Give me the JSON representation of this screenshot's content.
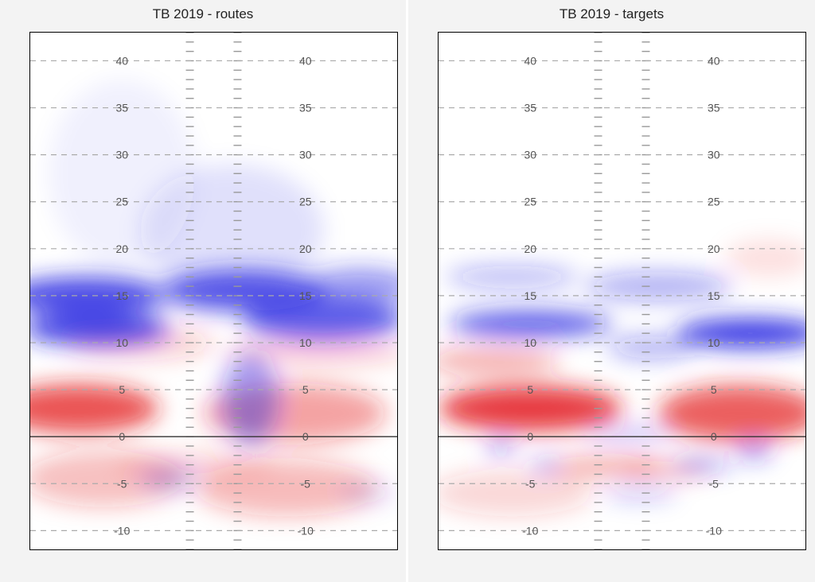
{
  "chart_data": [
    {
      "type": "heatmap",
      "title": "TB 2019 - routes",
      "ylim": [
        -12,
        43
      ],
      "yard_lines": [
        -10,
        -5,
        0,
        5,
        10,
        15,
        20,
        25,
        30,
        35,
        40
      ],
      "yard_labels": [
        "-10",
        "-5",
        "0",
        "5",
        "10",
        "15",
        "20",
        "25",
        "30",
        "35",
        "40"
      ],
      "colors": {
        "positive": "#e31a1c",
        "negative": "#1f1fe0",
        "neutral": "#ffffff"
      },
      "blobs": [
        {
          "x": 0.13,
          "y": 3,
          "rx": 0.22,
          "ry": 2.6,
          "value": 0.75
        },
        {
          "x": 0.3,
          "y": 10,
          "rx": 0.2,
          "ry": 1.8,
          "value": 0.22
        },
        {
          "x": 0.72,
          "y": 2.5,
          "rx": 0.25,
          "ry": 3.2,
          "value": 0.4
        },
        {
          "x": 0.78,
          "y": 9,
          "rx": 0.25,
          "ry": 1.5,
          "value": 0.2
        },
        {
          "x": 0.2,
          "y": -4.5,
          "rx": 0.22,
          "ry": 3,
          "value": 0.28
        },
        {
          "x": 0.7,
          "y": -5.5,
          "rx": 0.25,
          "ry": 3,
          "value": 0.3
        },
        {
          "x": 0.45,
          "y": -3,
          "rx": 0.22,
          "ry": 1.5,
          "value": 0.15
        },
        {
          "x": 0.15,
          "y": 15,
          "rx": 0.22,
          "ry": 2.0,
          "value": -0.8
        },
        {
          "x": 0.18,
          "y": 11.5,
          "rx": 0.2,
          "ry": 1.8,
          "value": -0.8
        },
        {
          "x": 0.58,
          "y": 15.5,
          "rx": 0.22,
          "ry": 2.2,
          "value": -0.75
        },
        {
          "x": 0.8,
          "y": 12.5,
          "rx": 0.22,
          "ry": 2.2,
          "value": -0.7
        },
        {
          "x": 0.9,
          "y": 16,
          "rx": 0.15,
          "ry": 2.0,
          "value": -0.45
        },
        {
          "x": 0.6,
          "y": 4,
          "rx": 0.08,
          "ry": 5,
          "value": -0.4
        },
        {
          "x": 0.38,
          "y": -4.5,
          "rx": 0.08,
          "ry": 1.2,
          "value": -0.25
        },
        {
          "x": 0.92,
          "y": -6,
          "rx": 0.08,
          "ry": 1.0,
          "value": -0.15
        },
        {
          "x": 0.55,
          "y": 22,
          "rx": 0.25,
          "ry": 7,
          "value": -0.12
        },
        {
          "x": 0.25,
          "y": 28,
          "rx": 0.2,
          "ry": 10,
          "value": -0.06
        }
      ]
    },
    {
      "type": "heatmap",
      "title": "TB 2019 - targets",
      "ylim": [
        -12,
        43
      ],
      "yard_lines": [
        -10,
        -5,
        0,
        5,
        10,
        15,
        20,
        25,
        30,
        35,
        40
      ],
      "yard_labels": [
        "-10",
        "-5",
        "0",
        "5",
        "10",
        "15",
        "20",
        "25",
        "30",
        "35",
        "40"
      ],
      "colors": {
        "positive": "#e31a1c",
        "negative": "#1f1fe0",
        "neutral": "#ffffff"
      },
      "blobs": [
        {
          "x": 0.25,
          "y": 3,
          "rx": 0.25,
          "ry": 2.4,
          "value": 0.85
        },
        {
          "x": 0.15,
          "y": 8,
          "rx": 0.18,
          "ry": 1.5,
          "value": 0.35
        },
        {
          "x": 0.82,
          "y": 2.5,
          "rx": 0.22,
          "ry": 3,
          "value": 0.7
        },
        {
          "x": 0.9,
          "y": 19,
          "rx": 0.12,
          "ry": 2.0,
          "value": 0.12
        },
        {
          "x": 0.45,
          "y": -3.2,
          "rx": 0.15,
          "ry": 1.2,
          "value": 0.35
        },
        {
          "x": 0.62,
          "y": -3.5,
          "rx": 0.12,
          "ry": 1.0,
          "value": 0.3
        },
        {
          "x": 0.2,
          "y": -6,
          "rx": 0.22,
          "ry": 2.5,
          "value": 0.18
        },
        {
          "x": 0.25,
          "y": 12,
          "rx": 0.22,
          "ry": 1.4,
          "value": -0.7
        },
        {
          "x": 0.85,
          "y": 11,
          "rx": 0.2,
          "ry": 1.6,
          "value": -0.85
        },
        {
          "x": 0.2,
          "y": 17,
          "rx": 0.18,
          "ry": 1.2,
          "value": -0.3
        },
        {
          "x": 0.6,
          "y": 16,
          "rx": 0.2,
          "ry": 1.5,
          "value": -0.35
        },
        {
          "x": 0.58,
          "y": 9.5,
          "rx": 0.12,
          "ry": 1.2,
          "value": -0.35
        },
        {
          "x": 0.52,
          "y": 0.3,
          "rx": 0.12,
          "ry": 0.6,
          "value": -0.35
        },
        {
          "x": 0.17,
          "y": -1,
          "rx": 0.04,
          "ry": 0.6,
          "value": -0.6
        },
        {
          "x": 0.29,
          "y": -3,
          "rx": 0.04,
          "ry": 0.6,
          "value": -0.45
        },
        {
          "x": 0.72,
          "y": -3,
          "rx": 0.08,
          "ry": 0.6,
          "value": -0.5
        },
        {
          "x": 0.86,
          "y": -1.5,
          "rx": 0.05,
          "ry": 1.0,
          "value": -0.45
        },
        {
          "x": 0.55,
          "y": -6,
          "rx": 0.1,
          "ry": 0.8,
          "value": -0.25
        }
      ]
    }
  ]
}
